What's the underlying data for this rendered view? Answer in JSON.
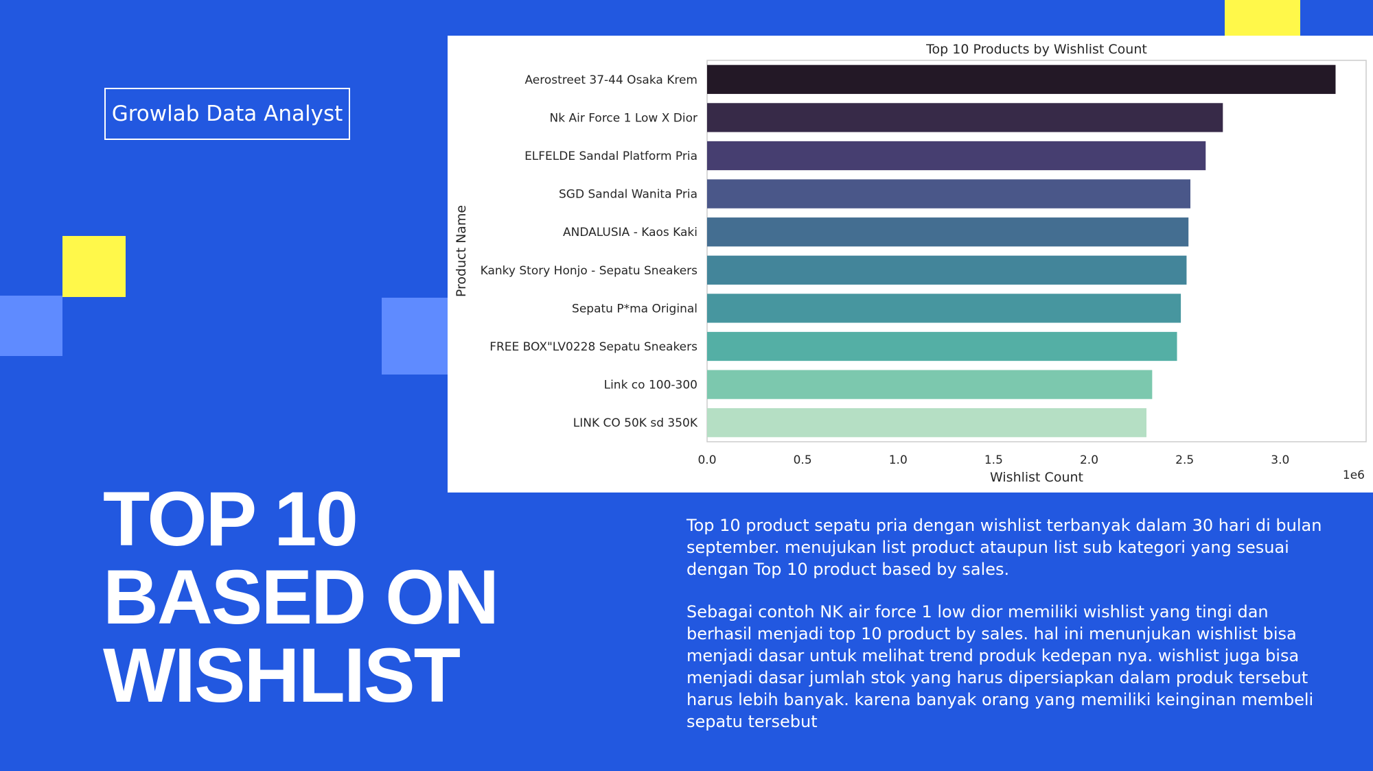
{
  "brand": {
    "badge_label": "Growlab Data Analyst"
  },
  "hero": {
    "title_lines": [
      "TOP 10",
      "BASED ON",
      "WISHLIST"
    ]
  },
  "description": {
    "paragraphs": [
      "Top 10 product sepatu pria dengan wishlist terbanyak dalam 30 hari di bulan september. menujukan list product ataupun list sub kategori yang sesuai dengan Top 10 product based by sales.",
      "Sebagai contoh NK air force 1 low dior memiliki wishlist yang tingi dan berhasil menjadi top 10 product by sales. hal ini menunjukan wishlist bisa menjadi dasar untuk melihat trend produk kedepan nya. wishlist juga bisa menjadi dasar jumlah stok yang harus dipersiapkan  dalam produk tersebut harus lebih banyak. karena banyak orang yang memiliki keinginan membeli sepatu tersebut"
    ]
  },
  "theme": {
    "background": "#2258e0",
    "accent_yellow": "#fff84a",
    "accent_light_blue": "#5f8bff",
    "text": "#ffffff"
  },
  "chart_data": {
    "type": "bar",
    "orientation": "horizontal",
    "title": "Top 10 Products by Wishlist Count",
    "xlabel": "Wishlist Count",
    "ylabel": "Product Name",
    "x_scale_label": "1e6",
    "xlim": [
      0,
      3.45
    ],
    "xticks": [
      "0.0",
      "0.5",
      "1.0",
      "1.5",
      "2.0",
      "2.5",
      "3.0"
    ],
    "categories": [
      "Aerostreet 37-44 Osaka Krem",
      "Nk Air Force 1 Low X Dior",
      "ELFELDE Sandal Platform Pria",
      "SGD Sandal Wanita Pria",
      "ANDALUSIA - Kaos Kaki",
      "Kanky Story Honjo - Sepatu Sneakers",
      "Sepatu P*ma Original",
      "FREE BOX\"LV0228 Sepatu Sneakers",
      "Link co 100-300",
      "LINK CO 50K sd 350K"
    ],
    "values": [
      3.29,
      2.7,
      2.61,
      2.53,
      2.52,
      2.51,
      2.48,
      2.46,
      2.33,
      2.3
    ],
    "colors": [
      "#231826",
      "#372a48",
      "#463e70",
      "#4a5789",
      "#446e91",
      "#43859a",
      "#47969f",
      "#54afa5",
      "#7cc8ae",
      "#b5dfc4"
    ],
    "grid": false,
    "legend": "none"
  }
}
